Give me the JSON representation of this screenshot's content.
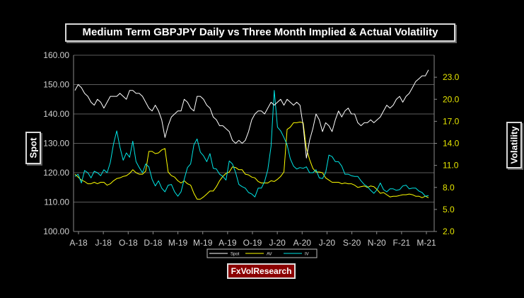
{
  "title": "Medium Term GBPJPY Daily vs Three Month Implied & Actual Volatility",
  "brand": "FxVolResearch",
  "chart_data": {
    "type": "line",
    "title": "Medium Term GBPJPY Daily vs Three Month Implied & Actual Volatility",
    "ylabel": "Spot",
    "y2label": "Volatility",
    "ylim": [
      100,
      160
    ],
    "y2lim": [
      2,
      26
    ],
    "yticks": [
      "100.00",
      "110.00",
      "120.00",
      "130.00",
      "140.00",
      "150.00",
      "160.00"
    ],
    "y2ticks": [
      "2.0",
      "5.0",
      "8.0",
      "11.0",
      "14.0",
      "17.0",
      "20.0",
      "23.0"
    ],
    "xticks": [
      "A-18",
      "J-18",
      "O-18",
      "D-18",
      "M-19",
      "M-19",
      "A-19",
      "O-19",
      "J-20",
      "A-20",
      "J-20",
      "S-20",
      "N-20",
      "F-21",
      "M-21"
    ],
    "grid": "horizontal",
    "legend_position": "bottom",
    "colors": {
      "Spot": "#ffffff",
      "AV": "#ffff00",
      "IV": "#00e5e5"
    },
    "series": [
      {
        "name": "Spot",
        "axis": "left",
        "values": [
          148,
          150,
          149,
          147,
          146,
          144,
          143,
          145,
          144,
          142,
          144,
          146,
          146,
          146,
          147,
          146,
          145,
          148,
          148,
          147,
          147,
          146,
          144,
          142,
          141,
          143,
          141,
          138,
          132,
          136,
          139,
          140,
          141,
          141,
          145,
          144,
          142,
          141,
          146,
          146,
          145,
          143,
          142,
          139,
          138,
          136,
          136,
          135,
          134,
          131,
          130,
          131,
          130,
          131,
          134,
          138,
          140,
          141,
          141,
          140,
          142,
          144,
          143,
          144,
          145,
          143,
          145,
          144,
          143,
          144,
          143,
          136,
          125,
          131,
          135,
          140,
          138,
          134,
          137,
          136,
          134,
          138,
          141,
          139,
          141,
          142,
          140,
          140,
          137,
          136,
          137,
          137,
          138,
          137,
          138,
          139,
          141,
          143,
          142,
          143,
          145,
          146,
          144,
          146,
          147,
          149,
          151,
          152,
          153,
          153,
          155
        ]
      },
      {
        "name": "AV",
        "axis": "right",
        "values": [
          9.8,
          9.4,
          9.0,
          8.8,
          8.5,
          8.5,
          8.7,
          8.5,
          8.7,
          8.7,
          8.3,
          8.5,
          8.9,
          9.2,
          9.3,
          9.5,
          9.6,
          9.9,
          10.4,
          10.0,
          9.8,
          9.8,
          10.2,
          12.9,
          12.9,
          12.6,
          12.7,
          13.1,
          13.3,
          10.1,
          9.6,
          9.4,
          8.9,
          8.6,
          8.9,
          8.5,
          8.3,
          7.2,
          6.4,
          6.4,
          6.7,
          7.1,
          7.5,
          7.5,
          8.1,
          8.9,
          9.5,
          9.9,
          10.1,
          10.8,
          10.7,
          10.4,
          10.4,
          9.8,
          9.7,
          9.4,
          9.3,
          8.8,
          8.6,
          8.6,
          8.6,
          8.9,
          8.8,
          9.1,
          9.5,
          10.1,
          15.9,
          16.2,
          16.8,
          16.8,
          16.9,
          16.8,
          13.3,
          11.8,
          10.6,
          10.1,
          10.1,
          10.0,
          9.3,
          9.0,
          8.7,
          8.7,
          8.7,
          8.5,
          8.6,
          8.5,
          8.5,
          8.3,
          8.0,
          8.1,
          8.2,
          8.0,
          8.2,
          8.1,
          7.7,
          7.2,
          7.3,
          7.0,
          6.7,
          6.8,
          6.8,
          6.9,
          7.0,
          7.0,
          7.1,
          7.0,
          6.8,
          6.8,
          6.6,
          6.8,
          6.6
        ]
      },
      {
        "name": "IV",
        "axis": "right",
        "values": [
          9.5,
          9.8,
          8.6,
          10.3,
          10.0,
          9.3,
          10.2,
          10.0,
          9.6,
          10.4,
          10.0,
          11.4,
          13.9,
          15.7,
          13.5,
          11.7,
          12.7,
          12.1,
          14.3,
          11.5,
          10.7,
          10.0,
          11.2,
          10.8,
          9.1,
          8.2,
          8.9,
          7.9,
          7.4,
          8.3,
          8.4,
          7.4,
          6.8,
          7.4,
          9.1,
          10.7,
          11.2,
          13.8,
          14.6,
          12.8,
          12.3,
          11.5,
          12.6,
          10.6,
          10.5,
          9.8,
          9.5,
          9.0,
          11.6,
          11.2,
          10.0,
          8.4,
          8.1,
          7.9,
          7.3,
          7.1,
          6.7,
          7.9,
          7.9,
          8.8,
          10.4,
          13.6,
          21.2,
          16.2,
          15.7,
          14.8,
          13.8,
          11.9,
          10.9,
          10.5,
          10.7,
          10.6,
          10.8,
          10.0,
          10.0,
          10.4,
          9.3,
          9.2,
          10.0,
          12.4,
          12.2,
          11.5,
          11.5,
          10.9,
          9.8,
          9.8,
          9.6,
          9.5,
          9.5,
          8.9,
          8.4,
          8.1,
          7.6,
          7.2,
          7.7,
          8.6,
          7.7,
          7.4,
          7.8,
          7.8,
          7.6,
          7.7,
          8.2,
          8.3,
          7.8,
          7.9,
          7.9,
          7.5,
          7.3,
          6.8,
          6.9
        ]
      }
    ]
  }
}
